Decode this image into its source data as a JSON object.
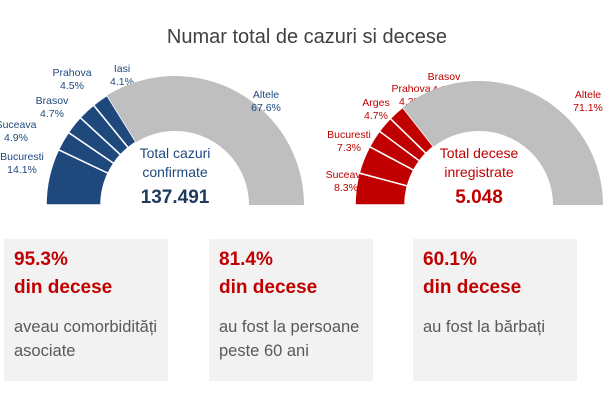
{
  "title": "Numar total de cazuri si decese",
  "chart_data": [
    {
      "type": "pie",
      "subtype": "half-donut",
      "name": "cases",
      "center_label": [
        "Total cazuri",
        "confirmate"
      ],
      "center_value": "137.491",
      "color_highlight": "#1f497d",
      "color_other": "#bfbfbf",
      "label_color": "#1f497d",
      "slices": [
        {
          "label": "Bucuresti",
          "value": 14.1,
          "text": "14.1%"
        },
        {
          "label": "Suceava",
          "value": 4.9,
          "text": "4.9%"
        },
        {
          "label": "Brasov",
          "value": 4.7,
          "text": "4.7%"
        },
        {
          "label": "Prahova",
          "value": 4.5,
          "text": "4.5%"
        },
        {
          "label": "Iasi",
          "value": 4.1,
          "text": "4.1%"
        },
        {
          "label": "Altele",
          "value": 67.6,
          "text": "67.6%"
        }
      ]
    },
    {
      "type": "pie",
      "subtype": "half-donut",
      "name": "deaths",
      "center_label": [
        "Total decese",
        "inregistrate"
      ],
      "center_value": "5.048",
      "color_highlight": "#c00000",
      "color_other": "#bfbfbf",
      "label_color": "#c00000",
      "slices": [
        {
          "label": "Suceava",
          "value": 8.3,
          "text": "8.3%"
        },
        {
          "label": "Bucuresti",
          "value": 7.3,
          "text": "7.3%"
        },
        {
          "label": "Arges",
          "value": 4.7,
          "text": "4.7%"
        },
        {
          "label": "Prahova",
          "value": 4.3,
          "text": "4.3%"
        },
        {
          "label": "Brasov",
          "value": 4.3,
          "text": "4.3%"
        },
        {
          "label": "Altele",
          "value": 71.1,
          "text": "71.1%"
        }
      ]
    }
  ],
  "cards": [
    {
      "percent": "95.3%",
      "subtitle": "din decese",
      "description": "aveau comorbidități asociate"
    },
    {
      "percent": "81.4%",
      "subtitle": "din decese",
      "description": "au fost la persoane peste 60 ani"
    },
    {
      "percent": "60.1%",
      "subtitle": "din decese",
      "description": "au fost la bărbați"
    }
  ]
}
